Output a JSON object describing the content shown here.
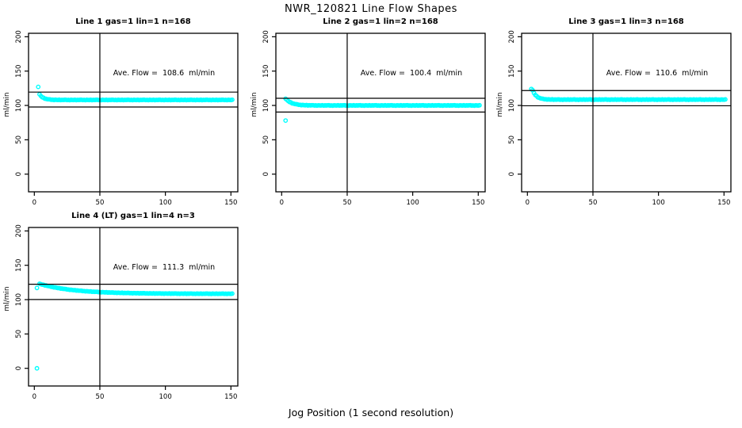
{
  "chart_data": {
    "type": "scatter",
    "title": "NWR_120821  Line Flow Shapes",
    "xlabel": "Jog Position (1 second resolution)",
    "ylabel": "ml/min",
    "x_ticks": [
      0,
      50,
      100,
      150
    ],
    "y_ticks": [
      0,
      50,
      100,
      150,
      200
    ],
    "xlim": [
      -5,
      156
    ],
    "ylim": [
      -26,
      205
    ],
    "grid": false,
    "point_color": "#00ffff",
    "axis_color": "#000000",
    "vertical_line_x": 50,
    "ref_line_factors": [
      1.1,
      0.9
    ],
    "noise_pattern": [
      0.4,
      -0.3,
      0.1,
      -0.5,
      0.3,
      0,
      -0.2,
      0.5,
      -0.4,
      0.2,
      -0.1,
      0.3
    ],
    "panels": [
      {
        "title": "Line 1 gas=1 lin=1 n=168",
        "gas": 1,
        "lin": 1,
        "n": 168,
        "ave_flow": 108.6,
        "annotation": "Ave. Flow =  108.6  ml/min",
        "series": {
          "x_start": 4,
          "x_end": 151,
          "start_y": 116,
          "settle_y": 108,
          "tau": 3,
          "noise_amp": 0.6,
          "outliers": [
            [
              3,
              127
            ]
          ]
        }
      },
      {
        "title": "Line 2 gas=1 lin=2 n=168",
        "gas": 1,
        "lin": 2,
        "n": 168,
        "ave_flow": 100.4,
        "annotation": "Ave. Flow =  100.4  ml/min",
        "series": {
          "x_start": 3,
          "x_end": 151,
          "start_y": 110,
          "settle_y": 100,
          "tau": 4.5,
          "noise_amp": 0.6,
          "outliers": [
            [
              3,
              78
            ]
          ]
        }
      },
      {
        "title": "Line 3 gas=1 lin=3 n=168",
        "gas": 1,
        "lin": 3,
        "n": 168,
        "ave_flow": 110.6,
        "annotation": "Ave. Flow =  110.6  ml/min",
        "series": {
          "x_start": 4,
          "x_end": 151,
          "start_y": 122,
          "settle_y": 108.5,
          "tau": 3,
          "noise_amp": 0.6,
          "outliers": [
            [
              3,
              124
            ]
          ]
        }
      },
      {
        "title": "Line 4 (LT) gas=1 lin=4 n=3",
        "gas": 1,
        "lin": 4,
        "n": 3,
        "ave_flow": 111.3,
        "annotation": "Ave. Flow =  111.3  ml/min",
        "series": {
          "x_start": 4,
          "x_end": 151,
          "start_y": 123,
          "settle_y": 108.5,
          "tau": 26,
          "noise_amp": 0.5,
          "outliers": [
            [
              2,
              0
            ],
            [
              2,
              117
            ]
          ]
        }
      }
    ]
  }
}
